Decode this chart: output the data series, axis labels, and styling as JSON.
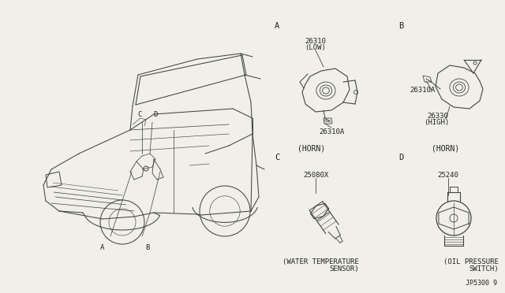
{
  "bg_color": "#f0efe8",
  "line_color": "#444444",
  "text_color": "#222222",
  "footer_text": "JP5300 9",
  "sec_A_labels": [
    "26310",
    "(LOW)",
    "26310A"
  ],
  "sec_B_labels": [
    "26310A",
    "26330",
    "(HIGH)"
  ],
  "sec_C_label": "25080X",
  "sec_D_label": "25240",
  "caption_A": "(HORN)",
  "caption_B": "(HORN)",
  "caption_C1": "(WATER TEMPERATURE",
  "caption_C2": "SENSOR)",
  "caption_D1": "(OIL PRESSURE",
  "caption_D2": "SWITCH)"
}
